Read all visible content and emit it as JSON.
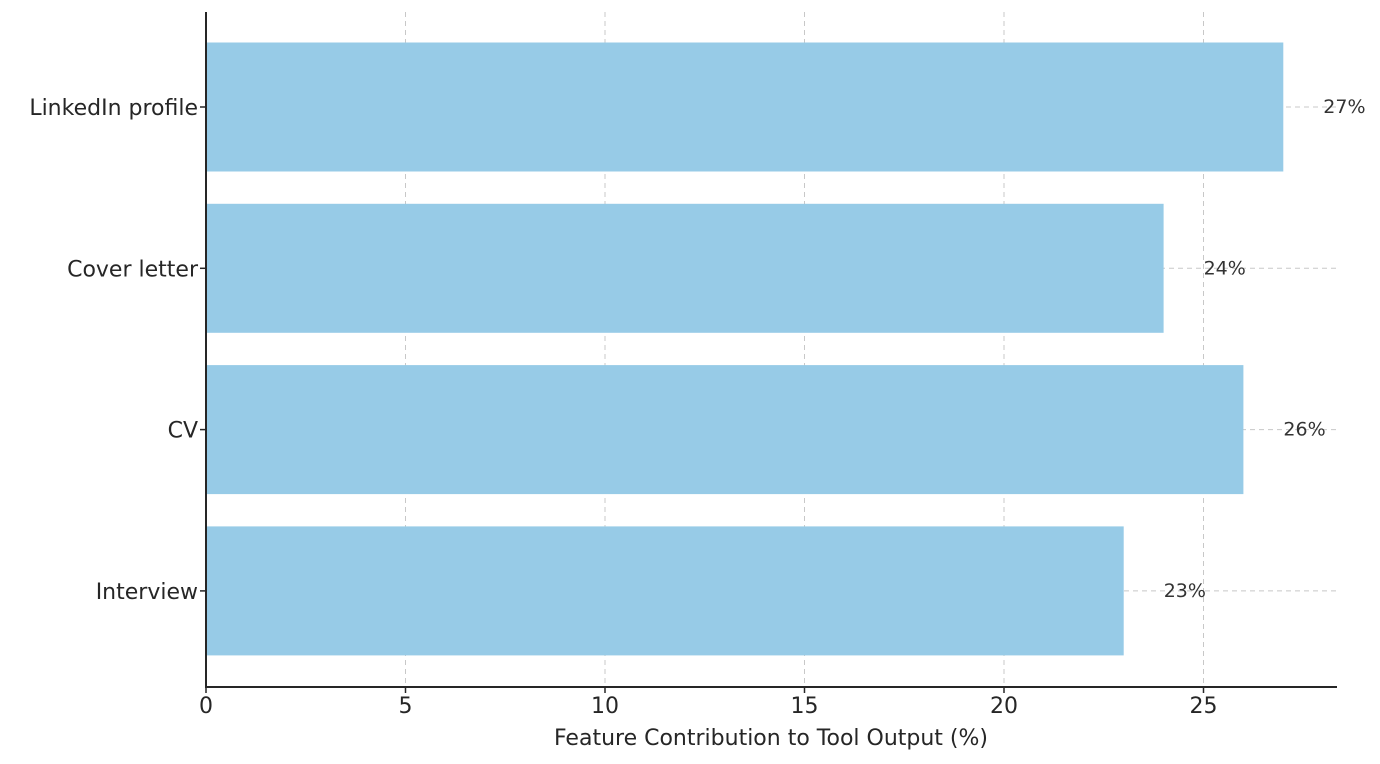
{
  "chart_data": {
    "type": "bar",
    "orientation": "horizontal",
    "categories": [
      "LinkedIn profile",
      "Cover letter",
      "CV",
      "Interview"
    ],
    "values": [
      27,
      24,
      26,
      23
    ],
    "data_labels": [
      "27%",
      "24%",
      "26%",
      "23%"
    ],
    "xlabel": "Feature Contribution to Tool Output (%)",
    "ylabel": "",
    "xlim": [
      0,
      28.35
    ],
    "xticks": [
      0,
      5,
      10,
      15,
      20,
      25
    ],
    "xtick_labels": [
      "0",
      "5",
      "10",
      "15",
      "20",
      "25"
    ],
    "grid": true,
    "bar_color": "#97cbe7",
    "grid_color": "#c8c8c8"
  }
}
